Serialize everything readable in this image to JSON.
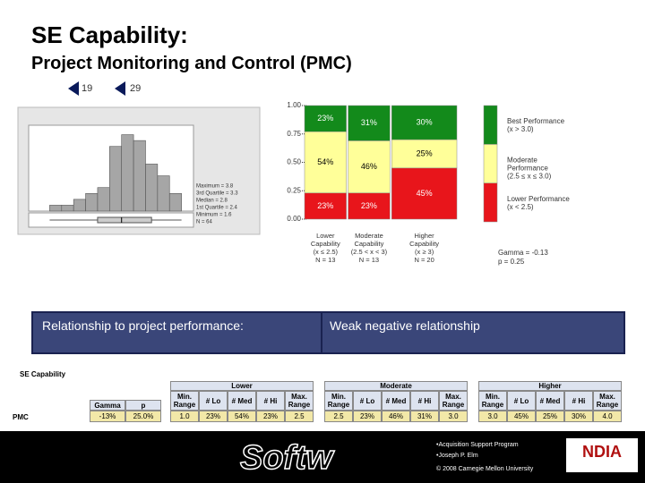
{
  "header": {
    "title": "SE Capability:",
    "subtitle": "Project Monitoring and Control (PMC)"
  },
  "nav": [
    "19",
    "29"
  ],
  "chart_data": [
    {
      "type": "histogram",
      "bins": [
        1.6,
        1.8,
        2.0,
        2.2,
        2.4,
        2.6,
        2.8,
        3.0,
        3.2,
        3.4,
        3.6,
        3.8
      ],
      "counts": [
        1,
        1,
        2,
        3,
        4,
        11,
        13,
        12,
        8,
        6,
        3
      ],
      "color": "#a6a6a6",
      "xlim": [
        1.25,
        4.0
      ],
      "ylim": [
        0,
        14
      ],
      "box": {
        "min": 1.6,
        "q1": 2.4,
        "median": 2.8,
        "q3": 3.3,
        "max": 3.8
      },
      "stats": [
        "Maximum = 3.8",
        "3rd Quartile = 3.3",
        "Median = 2.8",
        "1st Quartile = 2.4",
        "Minimum = 1.6",
        "N = 64"
      ]
    },
    {
      "type": "mosaic",
      "categories": [
        [
          "Lower",
          "Capability",
          "(x ≤ 2.5)"
        ],
        [
          "Moderate",
          "Capability",
          "(2.5 < x < 3)"
        ],
        [
          "Higher",
          "Capability",
          "(x ≥ 3)"
        ]
      ],
      "n": [
        13,
        13,
        20
      ],
      "n_labels": [
        "N = 13",
        "N = 13",
        "N = 20"
      ],
      "series": [
        {
          "name": [
            "Lower Performance",
            "(x < 2.5)"
          ],
          "color": "#e8151b",
          "label_color": "#ffffff",
          "values": [
            0.23,
            0.23,
            0.45
          ],
          "value_labels": [
            "23%",
            "23%",
            "45%"
          ]
        },
        {
          "name": [
            "Moderate",
            "Performance",
            "(2.5 ≤ x ≤ 3.0)"
          ],
          "color": "#ffff99",
          "label_color": "#000000",
          "values": [
            0.54,
            0.46,
            0.25
          ],
          "value_labels": [
            "54%",
            "46%",
            "25%"
          ]
        },
        {
          "name": [
            "Best Performance",
            "(x > 3.0)"
          ],
          "color": "#138a1b",
          "label_color": "#ffffff",
          "values": [
            0.23,
            0.31,
            0.3
          ],
          "value_labels": [
            "23%",
            "31%",
            "30%"
          ]
        }
      ],
      "ylim": [
        0,
        1
      ],
      "yticks": [
        {
          "value": 0,
          "label": "0.00"
        },
        {
          "value": 0.25,
          "label": "0.25"
        },
        {
          "value": 0.5,
          "label": "0.50"
        },
        {
          "value": 0.75,
          "label": "0.75"
        },
        {
          "value": 1,
          "label": "1.00"
        }
      ],
      "annotations": [
        "Gamma = -0.13",
        "p = 0.25"
      ]
    }
  ],
  "banner": {
    "left": "Relationship to project performance:",
    "right": "Weak negative relationship"
  },
  "table": {
    "title": "SE Capability",
    "groups": [
      "Lower",
      "Moderate",
      "Higher"
    ],
    "columns": [
      "Gamma",
      "p",
      "Min. Range",
      "# Lo",
      "# Med",
      "# Hi",
      "Max. Range",
      "Min. Range",
      "# Lo",
      "# Med",
      "# Hi",
      "Max. Range",
      "Min. Range",
      "# Lo",
      "# Med",
      "# Hi",
      "Max. Range"
    ],
    "rows": [
      [
        "PMC",
        "-13%",
        "25.0%",
        "1.0",
        "23%",
        "54%",
        "23%",
        "2.5",
        "2.5",
        "23%",
        "46%",
        "31%",
        "3.0",
        "3.0",
        "45%",
        "25%",
        "30%",
        "4.0"
      ]
    ]
  },
  "footer": {
    "logo": "Softw",
    "lines": [
      "•Acquisition Support Program",
      "•Joseph P. Elm",
      "© 2008 Carnegie Mellon University"
    ],
    "partner_logo": "NDIA"
  }
}
